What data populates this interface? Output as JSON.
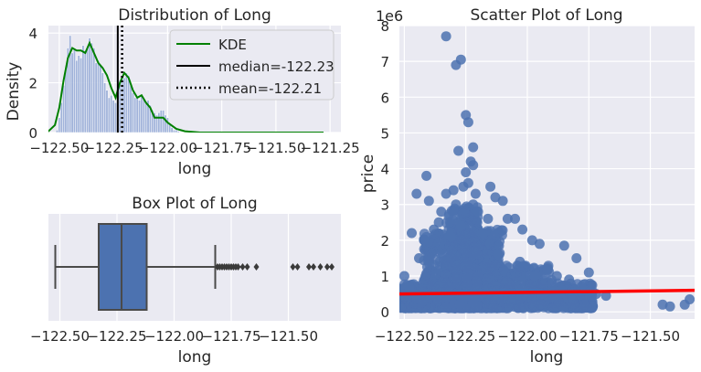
{
  "chart_data": [
    {
      "type": "histogram",
      "title": "Distribution of Long",
      "xlabel": "long",
      "ylabel": "Density",
      "xlim": [
        -122.55,
        -121.2
      ],
      "ylim": [
        0,
        4.3
      ],
      "xticks": [
        "−122.50",
        "−122.25",
        "−122.00",
        "−121.75",
        "−121.50",
        "−121.25"
      ],
      "yticks": [
        "0",
        "2",
        "4"
      ],
      "bins": [
        {
          "x": -122.51,
          "density": 0.1
        },
        {
          "x": -122.5,
          "density": 0.6
        },
        {
          "x": -122.49,
          "density": 1.2
        },
        {
          "x": -122.48,
          "density": 1.9
        },
        {
          "x": -122.47,
          "density": 2.6
        },
        {
          "x": -122.46,
          "density": 3.4
        },
        {
          "x": -122.45,
          "density": 3.9
        },
        {
          "x": -122.44,
          "density": 3.2
        },
        {
          "x": -122.43,
          "density": 3.4
        },
        {
          "x": -122.42,
          "density": 2.9
        },
        {
          "x": -122.41,
          "density": 3.1
        },
        {
          "x": -122.4,
          "density": 3.0
        },
        {
          "x": -122.39,
          "density": 3.5
        },
        {
          "x": -122.38,
          "density": 3.3
        },
        {
          "x": -122.37,
          "density": 3.4
        },
        {
          "x": -122.36,
          "density": 3.8
        },
        {
          "x": -122.35,
          "density": 3.6
        },
        {
          "x": -122.34,
          "density": 3.4
        },
        {
          "x": -122.33,
          "density": 2.8
        },
        {
          "x": -122.32,
          "density": 2.9
        },
        {
          "x": -122.31,
          "density": 2.7
        },
        {
          "x": -122.3,
          "density": 2.4
        },
        {
          "x": -122.29,
          "density": 2.0
        },
        {
          "x": -122.28,
          "density": 1.7
        },
        {
          "x": -122.27,
          "density": 1.4
        },
        {
          "x": -122.26,
          "density": 1.5
        },
        {
          "x": -122.25,
          "density": 1.3
        },
        {
          "x": -122.24,
          "density": 1.2
        },
        {
          "x": -122.23,
          "density": 2.0
        },
        {
          "x": -122.22,
          "density": 2.1
        },
        {
          "x": -122.21,
          "density": 2.3
        },
        {
          "x": -122.2,
          "density": 2.2
        },
        {
          "x": -122.19,
          "density": 2.4
        },
        {
          "x": -122.18,
          "density": 2.3
        },
        {
          "x": -122.17,
          "density": 1.9
        },
        {
          "x": -122.16,
          "density": 1.6
        },
        {
          "x": -122.15,
          "density": 1.4
        },
        {
          "x": -122.14,
          "density": 1.4
        },
        {
          "x": -122.13,
          "density": 1.3
        },
        {
          "x": -122.12,
          "density": 1.5
        },
        {
          "x": -122.11,
          "density": 1.4
        },
        {
          "x": -122.1,
          "density": 1.2
        },
        {
          "x": -122.09,
          "density": 1.3
        },
        {
          "x": -122.08,
          "density": 1.1
        },
        {
          "x": -122.07,
          "density": 0.9
        },
        {
          "x": -122.06,
          "density": 0.8
        },
        {
          "x": -122.05,
          "density": 0.7
        },
        {
          "x": -122.04,
          "density": 0.8
        },
        {
          "x": -122.03,
          "density": 0.9
        },
        {
          "x": -122.02,
          "density": 0.9
        },
        {
          "x": -122.01,
          "density": 0.7
        },
        {
          "x": -122.0,
          "density": 0.6
        },
        {
          "x": -121.99,
          "density": 0.3
        },
        {
          "x": -121.98,
          "density": 0.2
        },
        {
          "x": -121.97,
          "density": 0.1
        },
        {
          "x": -121.96,
          "density": 0.1
        },
        {
          "x": -121.95,
          "density": 0.05
        }
      ],
      "kde": [
        [
          -122.6,
          0.0
        ],
        [
          -122.55,
          0.05
        ],
        [
          -122.52,
          0.3
        ],
        [
          -122.5,
          1.0
        ],
        [
          -122.48,
          2.1
        ],
        [
          -122.46,
          3.0
        ],
        [
          -122.44,
          3.4
        ],
        [
          -122.42,
          3.3
        ],
        [
          -122.4,
          3.3
        ],
        [
          -122.38,
          3.2
        ],
        [
          -122.36,
          3.6
        ],
        [
          -122.34,
          3.2
        ],
        [
          -122.32,
          2.8
        ],
        [
          -122.3,
          2.6
        ],
        [
          -122.28,
          2.3
        ],
        [
          -122.26,
          1.8
        ],
        [
          -122.24,
          1.4
        ],
        [
          -122.22,
          2.0
        ],
        [
          -122.2,
          2.4
        ],
        [
          -122.18,
          2.2
        ],
        [
          -122.16,
          1.7
        ],
        [
          -122.14,
          1.4
        ],
        [
          -122.12,
          1.5
        ],
        [
          -122.1,
          1.2
        ],
        [
          -122.08,
          1.0
        ],
        [
          -122.06,
          0.6
        ],
        [
          -122.04,
          0.6
        ],
        [
          -122.02,
          0.6
        ],
        [
          -122.0,
          0.4
        ],
        [
          -121.96,
          0.15
        ],
        [
          -121.92,
          0.05
        ],
        [
          -121.85,
          0.0
        ],
        [
          -121.7,
          0.0
        ],
        [
          -121.4,
          0.0
        ],
        [
          -121.28,
          0.0
        ]
      ],
      "median": -122.23,
      "mean": -122.21,
      "legend": [
        "KDE",
        "median=-122.23",
        "mean=-122.21"
      ],
      "legend_position": "top-right",
      "colors": {
        "hist": "#9aaed8",
        "kde": "#008000",
        "median": "#000000",
        "mean": "#000000"
      }
    },
    {
      "type": "box",
      "title": "Box Plot of Long",
      "xlabel": "long",
      "xlim": [
        -122.55,
        -121.27
      ],
      "xticks": [
        "−122.50",
        "−122.25",
        "−122.00",
        "−121.75",
        "−121.50"
      ],
      "whisker_low": -122.52,
      "q1": -122.33,
      "median": -122.23,
      "q3": -122.12,
      "whisker_high": -121.82,
      "outliers": [
        -121.81,
        -121.8,
        -121.79,
        -121.78,
        -121.77,
        -121.76,
        -121.75,
        -121.74,
        -121.73,
        -121.72,
        -121.7,
        -121.68,
        -121.64,
        -121.48,
        -121.46,
        -121.41,
        -121.39,
        -121.36,
        -121.33,
        -121.31
      ],
      "colors": {
        "box": "#4c72b0",
        "line": "#4a4a4a"
      }
    },
    {
      "type": "scatter",
      "title": "Scatter Plot of Long",
      "xlabel": "long",
      "ylabel": "price",
      "y_multiplier": "1e6",
      "xlim": [
        -122.52,
        -121.32
      ],
      "ylim": [
        -0.2,
        8.0
      ],
      "xticks": [
        "−122.50",
        "−122.25",
        "−122.00",
        "−121.75",
        "−121.50"
      ],
      "yticks": [
        "0",
        "1",
        "2",
        "3",
        "4",
        "5",
        "6",
        "7",
        "8"
      ],
      "points": [
        [
          -122.33,
          7.7
        ],
        [
          -122.27,
          7.05
        ],
        [
          -122.29,
          6.9
        ],
        [
          -122.24,
          5.3
        ],
        [
          -122.25,
          5.5
        ],
        [
          -122.22,
          4.6
        ],
        [
          -122.23,
          4.2
        ],
        [
          -122.22,
          4.1
        ],
        [
          -122.28,
          4.5
        ],
        [
          -122.41,
          3.8
        ],
        [
          -122.25,
          3.9
        ],
        [
          -122.24,
          3.6
        ],
        [
          -122.21,
          3.3
        ],
        [
          -122.26,
          3.5
        ],
        [
          -122.3,
          3.4
        ],
        [
          -122.22,
          3.0
        ],
        [
          -122.29,
          3.0
        ],
        [
          -122.33,
          3.3
        ],
        [
          -122.45,
          3.3
        ],
        [
          -122.4,
          3.1
        ],
        [
          -122.35,
          2.8
        ],
        [
          -122.2,
          2.8
        ],
        [
          -122.15,
          3.5
        ],
        [
          -122.13,
          3.2
        ],
        [
          -122.1,
          3.1
        ],
        [
          -122.08,
          2.6
        ],
        [
          -122.05,
          2.6
        ],
        [
          -122.02,
          2.3
        ],
        [
          -121.98,
          2.0
        ],
        [
          -121.95,
          1.9
        ],
        [
          -121.85,
          1.85
        ],
        [
          -121.8,
          1.5
        ],
        [
          -121.75,
          1.1
        ],
        [
          -122.47,
          2.2
        ],
        [
          -122.5,
          1.0
        ],
        [
          -122.44,
          1.5
        ],
        [
          -122.38,
          2.3
        ],
        [
          -122.18,
          2.2
        ],
        [
          -121.92,
          1.2
        ],
        [
          -121.88,
          1.0
        ],
        [
          -121.83,
          0.9
        ],
        [
          -121.78,
          0.7
        ],
        [
          -121.72,
          0.5
        ],
        [
          -121.68,
          0.45
        ],
        [
          -121.45,
          0.2
        ],
        [
          -121.42,
          0.15
        ],
        [
          -121.36,
          0.2
        ],
        [
          -121.34,
          0.35
        ],
        [
          -122.48,
          0.7
        ],
        [
          -122.46,
          0.5
        ],
        [
          -122.12,
          1.6
        ],
        [
          -122.03,
          1.4
        ],
        [
          -121.97,
          1.0
        ],
        [
          -121.9,
          0.8
        ],
        [
          -121.86,
          0.6
        ],
        [
          -122.16,
          2.6
        ],
        [
          -122.36,
          2.5
        ],
        [
          -122.42,
          2.0
        ],
        [
          -122.31,
          2.1
        ],
        [
          -122.27,
          2.4
        ]
      ],
      "dense_regions": [
        {
          "x": [
            -122.42,
            -122.1
          ],
          "y": [
            0.1,
            2.3
          ]
        },
        {
          "x": [
            -122.33,
            -122.2
          ],
          "y": [
            0.1,
            3.0
          ]
        },
        {
          "x": [
            -122.1,
            -121.9
          ],
          "y": [
            0.1,
            1.3
          ]
        },
        {
          "x": [
            -121.9,
            -121.73
          ],
          "y": [
            0.1,
            0.8
          ]
        },
        {
          "x": [
            -122.52,
            -122.42
          ],
          "y": [
            0.1,
            0.8
          ]
        }
      ],
      "regression": [
        [
          -122.52,
          0.5
        ],
        [
          -121.32,
          0.6
        ]
      ],
      "colors": {
        "points": "#4c72b0",
        "regression": "#ff0000"
      }
    }
  ]
}
